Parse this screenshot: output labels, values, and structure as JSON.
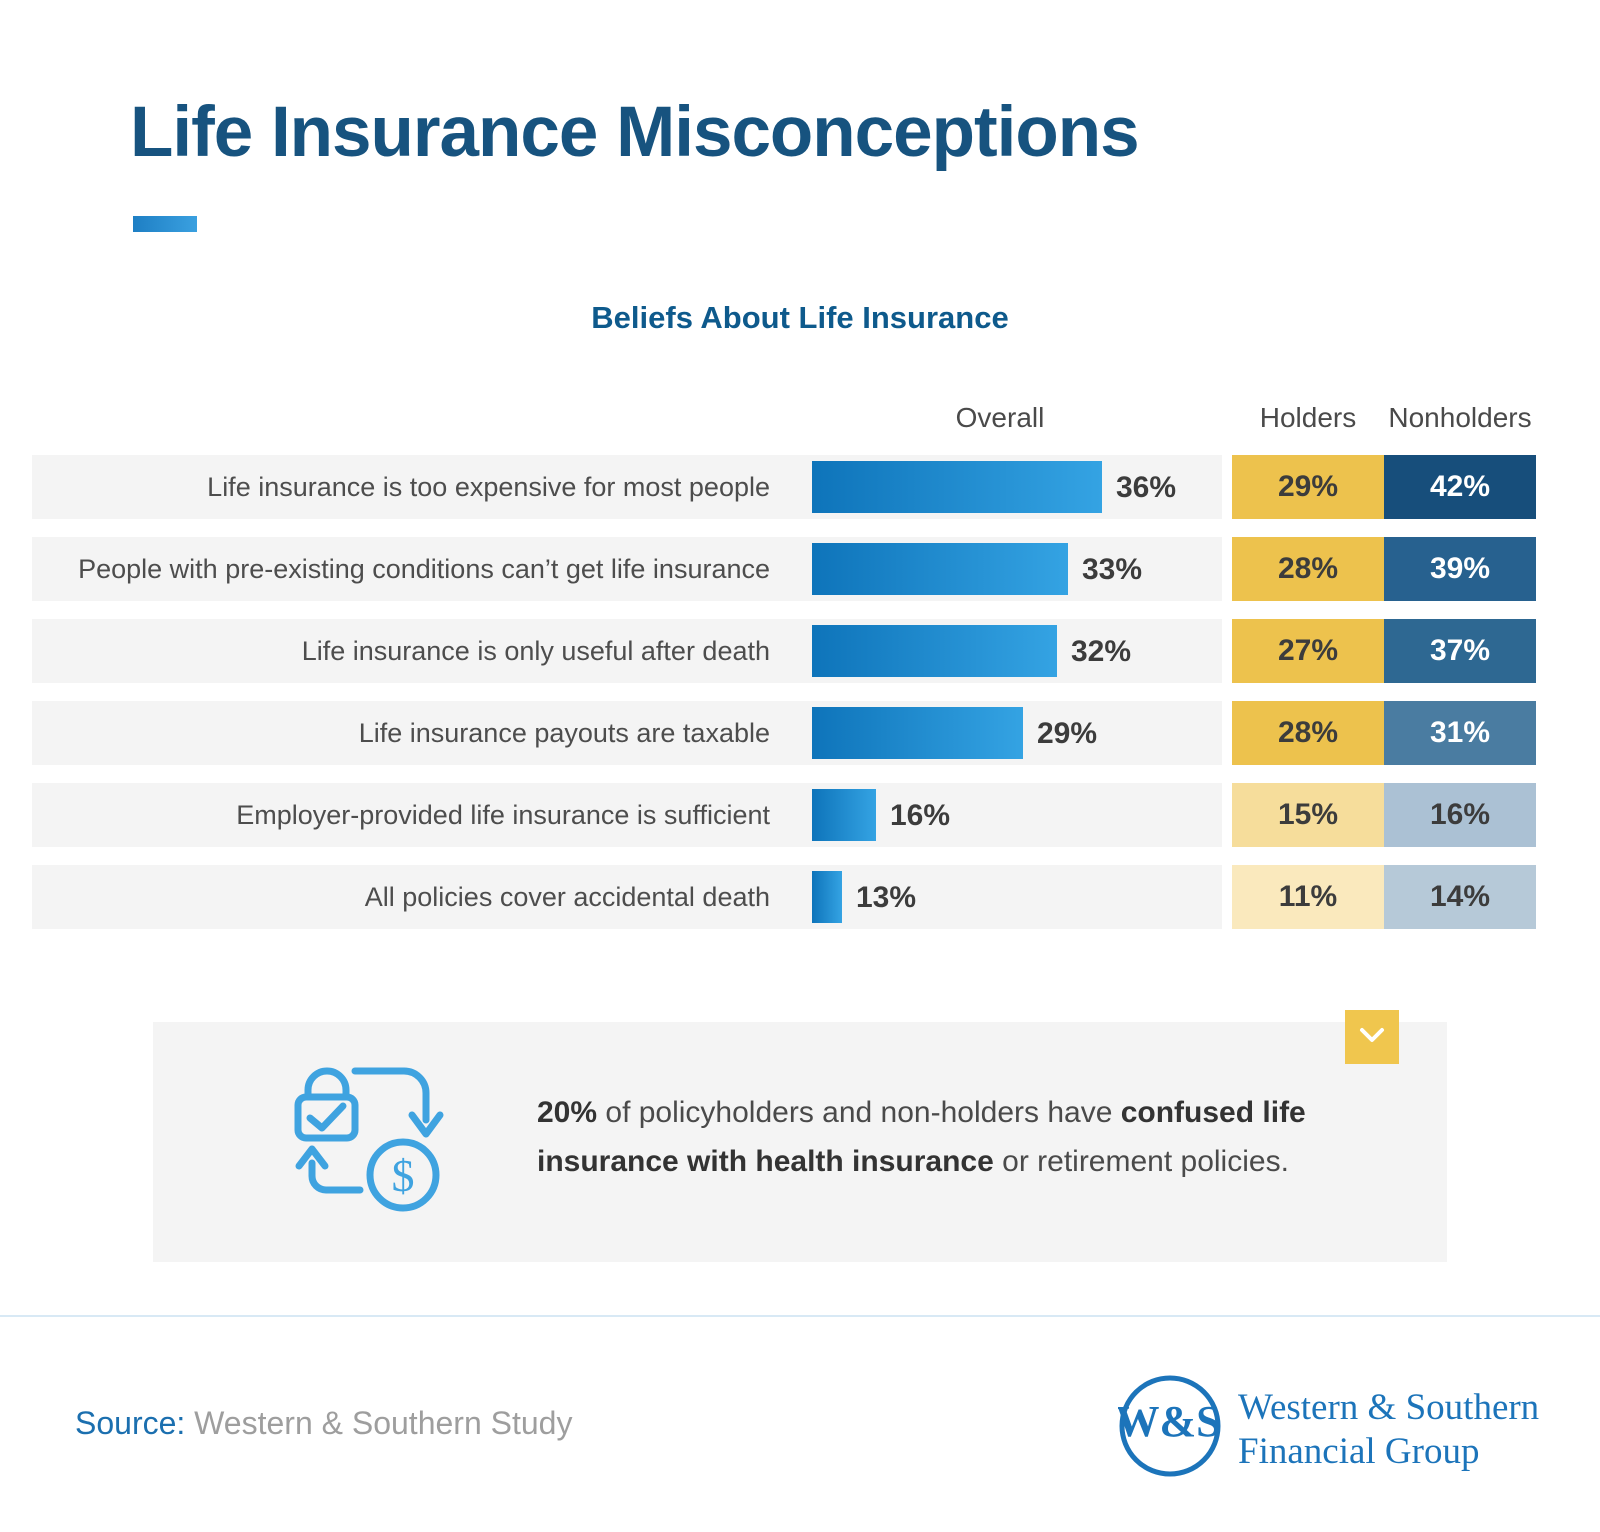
{
  "page_title": "Life Insurance Misconceptions",
  "chart": {
    "title": "Beliefs About Life Insurance",
    "column_headers": {
      "overall": "Overall",
      "holders": "Holders",
      "nonholders": "Nonholders"
    }
  },
  "chart_data": {
    "type": "bar",
    "title": "Beliefs About Life Insurance",
    "categories": [
      "Life insurance is too expensive for most people",
      "People with pre-existing conditions can’t get life insurance",
      "Life insurance is only useful after death",
      "Life insurance payouts are taxable",
      "Employer-provided life insurance is sufficient",
      "All policies cover accidental death"
    ],
    "series": [
      {
        "name": "Overall",
        "values": [
          36,
          33,
          32,
          29,
          16,
          13
        ]
      },
      {
        "name": "Holders",
        "values": [
          29,
          28,
          27,
          28,
          15,
          11
        ]
      },
      {
        "name": "Nonholders",
        "values": [
          42,
          39,
          37,
          31,
          16,
          14
        ]
      }
    ],
    "unit": "%",
    "xlim": [
      0,
      45
    ],
    "grid": false,
    "legend_position": "top"
  },
  "colors": {
    "title_blue": "#17537F",
    "heading_blue": "#0E5A8C",
    "accent_dash": "#2E97DC",
    "bar_gradient_start": "#0E74BA",
    "bar_gradient_end": "#34A3E3",
    "row_band": "#F4F4F4",
    "holders_cells": [
      "#EDC24D",
      "#EDC24D",
      "#EDC24D",
      "#EDC24D",
      "#F6DD9B",
      "#FAE9BD"
    ],
    "holders_text": [
      "#3C3C3C",
      "#3C3C3C",
      "#3C3C3C",
      "#3C3C3C",
      "#3C3C3C",
      "#3C3C3C"
    ],
    "nonholders_cells": [
      "#174E7B",
      "#27618F",
      "#2E6892",
      "#4A7CA1",
      "#ABC1D4",
      "#B6C9D8"
    ],
    "nonholders_text": [
      "#FFFFFF",
      "#FFFFFF",
      "#FFFFFF",
      "#FFFFFF",
      "#3C3C3C",
      "#3C3C3C"
    ],
    "callout_gold": "#F0C64E",
    "icon_blue": "#3FA3E0",
    "logo_blue": "#1C74BA"
  },
  "callout": {
    "segments": [
      {
        "text": "20%",
        "bold": true
      },
      {
        "text": " of policyholders and non-holders have ",
        "bold": false
      },
      {
        "text": "confused life insurance with health insurance",
        "bold": true
      },
      {
        "text": " or retirement policies.",
        "bold": false
      }
    ]
  },
  "footer": {
    "source_label": "Source:",
    "source_text": " Western & Southern Study",
    "logo_monogram": "W&S",
    "logo_line1": "Western & Southern",
    "logo_line2": "Financial Group"
  }
}
